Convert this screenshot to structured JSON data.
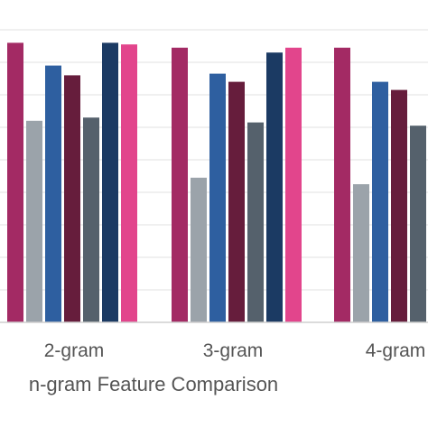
{
  "chart_data": {
    "type": "bar",
    "categories": [
      "2-gram",
      "3-gram",
      "4-gram"
    ],
    "xlabel": "n-gram Feature Comparison",
    "grid": true,
    "ylim": [
      0,
      100
    ],
    "series": [
      {
        "color": "#a32a64",
        "values": [
          86.0,
          84.5,
          84.5
        ]
      },
      {
        "color": "#9ba3aa",
        "values": [
          62.0,
          44.5,
          42.5
        ]
      },
      {
        "color": "#2e5fa0",
        "values": [
          79.0,
          76.5,
          74.0
        ]
      },
      {
        "color": "#661d3c",
        "values": [
          76.0,
          74.0,
          71.5
        ]
      },
      {
        "color": "#55616c",
        "values": [
          63.0,
          61.5,
          60.5
        ]
      },
      {
        "color": "#1b3a63",
        "values": [
          86.0,
          83.0,
          null
        ]
      },
      {
        "color": "#e2458c",
        "values": [
          85.5,
          84.5,
          null
        ]
      }
    ]
  }
}
